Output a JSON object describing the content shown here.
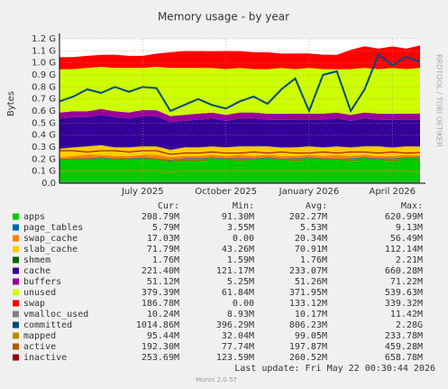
{
  "chart_data": {
    "type": "area",
    "title": "Memory usage - by year",
    "y_label": "Bytes",
    "side_text": "RRDTOOL / TOBI OETIKER",
    "categories": [
      null,
      null,
      null,
      null,
      null,
      null,
      "July 2025",
      null,
      null,
      null,
      null,
      null,
      "October 2025",
      null,
      null,
      null,
      null,
      null,
      "January 2026",
      null,
      null,
      null,
      null,
      null,
      "April 2026",
      null,
      null
    ],
    "ylim": [
      0,
      1.2
    ],
    "yticks": [
      {
        "value": 0,
        "label": "0.0"
      },
      {
        "value": 0.1,
        "label": "0.1 G"
      },
      {
        "value": 0.2,
        "label": "0.2 G"
      },
      {
        "value": 0.3,
        "label": "0.3 G"
      },
      {
        "value": 0.4,
        "label": "0.4 G"
      },
      {
        "value": 0.5,
        "label": "0.5 G"
      },
      {
        "value": 0.6,
        "label": "0.6 G"
      },
      {
        "value": 0.7,
        "label": "0.7 G"
      },
      {
        "value": 0.8,
        "label": "0.8 G"
      },
      {
        "value": 0.9,
        "label": "0.9 G"
      },
      {
        "value": 1.0,
        "label": "1.0 G"
      },
      {
        "value": 1.1,
        "label": "1.1 G"
      },
      {
        "value": 1.2,
        "label": "1.2 G"
      }
    ],
    "grid": true,
    "stat_headers": [
      "Cur:",
      "Min:",
      "Avg:",
      "Max:"
    ],
    "series": [
      {
        "name": "apps",
        "color": "#00cc00",
        "stacked": true,
        "stats": [
          "208.79M",
          "91.30M",
          "202.27M",
          "620.99M"
        ],
        "values": [
          0.19,
          0.2,
          0.2,
          0.21,
          0.2,
          0.2,
          0.21,
          0.2,
          0.19,
          0.2,
          0.2,
          0.21,
          0.2,
          0.2,
          0.2,
          0.21,
          0.2,
          0.2,
          0.21,
          0.2,
          0.2,
          0.2,
          0.21,
          0.2,
          0.2,
          0.21,
          0.21
        ]
      },
      {
        "name": "page_tables",
        "color": "#0066b3",
        "stacked": true,
        "stats": [
          "5.79M",
          "3.55M",
          "5.53M",
          "9.13M"
        ],
        "values": [
          0.005,
          0.006,
          0.006,
          0.005,
          0.006,
          0.006,
          0.006,
          0.005,
          0.006,
          0.006,
          0.006,
          0.005,
          0.006,
          0.006,
          0.006,
          0.006,
          0.005,
          0.006,
          0.006,
          0.006,
          0.005,
          0.006,
          0.006,
          0.006,
          0.005,
          0.006,
          0.006
        ]
      },
      {
        "name": "swap_cache",
        "color": "#ff8000",
        "stacked": true,
        "stats": [
          "17.03M",
          "0.00",
          "20.34M",
          "56.49M"
        ],
        "values": [
          0.02,
          0.02,
          0.03,
          0.02,
          0.02,
          0.02,
          0.02,
          0.03,
          0.02,
          0.02,
          0.02,
          0.02,
          0.02,
          0.03,
          0.02,
          0.02,
          0.02,
          0.02,
          0.02,
          0.02,
          0.03,
          0.02,
          0.02,
          0.02,
          0.02,
          0.02,
          0.017
        ]
      },
      {
        "name": "slab_cache",
        "color": "#ffcc00",
        "stacked": true,
        "stats": [
          "71.79M",
          "43.26M",
          "70.91M",
          "112.14M"
        ],
        "values": [
          0.07,
          0.07,
          0.07,
          0.08,
          0.07,
          0.07,
          0.07,
          0.07,
          0.06,
          0.07,
          0.07,
          0.07,
          0.07,
          0.07,
          0.08,
          0.07,
          0.07,
          0.07,
          0.07,
          0.07,
          0.07,
          0.07,
          0.07,
          0.08,
          0.07,
          0.07,
          0.072
        ]
      },
      {
        "name": "shmem",
        "color": "#006600",
        "stacked": true,
        "stats": [
          "1.76M",
          "1.59M",
          "1.76M",
          "2.21M"
        ],
        "values": [
          0.002,
          0.002,
          0.002,
          0.002,
          0.002,
          0.002,
          0.002,
          0.002,
          0.002,
          0.002,
          0.002,
          0.002,
          0.002,
          0.002,
          0.002,
          0.002,
          0.002,
          0.002,
          0.002,
          0.002,
          0.002,
          0.002,
          0.002,
          0.002,
          0.002,
          0.002,
          0.002
        ]
      },
      {
        "name": "cache",
        "color": "#330099",
        "stacked": true,
        "stats": [
          "221.40M",
          "121.17M",
          "233.07M",
          "660.28M"
        ],
        "values": [
          0.25,
          0.25,
          0.24,
          0.25,
          0.25,
          0.24,
          0.25,
          0.25,
          0.23,
          0.22,
          0.23,
          0.23,
          0.22,
          0.23,
          0.23,
          0.22,
          0.23,
          0.23,
          0.22,
          0.23,
          0.23,
          0.22,
          0.23,
          0.22,
          0.23,
          0.22,
          0.221
        ]
      },
      {
        "name": "buffers",
        "color": "#990099",
        "stacked": true,
        "stats": [
          "51.12M",
          "5.25M",
          "51.26M",
          "71.22M"
        ],
        "values": [
          0.05,
          0.05,
          0.05,
          0.05,
          0.05,
          0.05,
          0.05,
          0.05,
          0.05,
          0.05,
          0.05,
          0.05,
          0.05,
          0.05,
          0.05,
          0.05,
          0.05,
          0.05,
          0.05,
          0.05,
          0.05,
          0.05,
          0.05,
          0.05,
          0.05,
          0.05,
          0.051
        ]
      },
      {
        "name": "unused",
        "color": "#ccff00",
        "stacked": true,
        "stats": [
          "379.39M",
          "61.84M",
          "371.95M",
          "539.63M"
        ],
        "values": [
          0.36,
          0.35,
          0.36,
          0.35,
          0.36,
          0.37,
          0.35,
          0.36,
          0.4,
          0.39,
          0.38,
          0.37,
          0.38,
          0.37,
          0.36,
          0.37,
          0.38,
          0.37,
          0.38,
          0.37,
          0.36,
          0.38,
          0.37,
          0.37,
          0.38,
          0.37,
          0.379
        ]
      },
      {
        "name": "swap",
        "color": "#ff0000",
        "stacked": true,
        "stats": [
          "186.78M",
          "0.00",
          "133.12M",
          "339.32M"
        ],
        "values": [
          0.1,
          0.1,
          0.1,
          0.1,
          0.11,
          0.1,
          0.1,
          0.11,
          0.13,
          0.14,
          0.14,
          0.14,
          0.15,
          0.14,
          0.14,
          0.14,
          0.12,
          0.13,
          0.12,
          0.12,
          0.12,
          0.16,
          0.18,
          0.17,
          0.18,
          0.17,
          0.187
        ]
      },
      {
        "name": "vmalloc_used",
        "color": "#808080",
        "stacked": false,
        "stats": [
          "10.24M",
          "8.93M",
          "10.17M",
          "11.42M"
        ],
        "values": [
          0.01,
          0.01,
          0.01,
          0.01,
          0.01,
          0.01,
          0.01,
          0.01,
          0.01,
          0.01,
          0.01,
          0.01,
          0.01,
          0.01,
          0.01,
          0.01,
          0.01,
          0.01,
          0.01,
          0.01,
          0.01,
          0.01,
          0.01,
          0.01,
          0.01,
          0.01,
          0.01
        ]
      },
      {
        "name": "committed",
        "color": "#00487d",
        "stacked": false,
        "stats": [
          "1014.86M",
          "396.29M",
          "806.23M",
          "2.28G"
        ],
        "values": [
          0.68,
          0.72,
          0.78,
          0.75,
          0.8,
          0.76,
          0.8,
          0.79,
          0.6,
          0.65,
          0.7,
          0.65,
          0.62,
          0.68,
          0.72,
          0.66,
          0.78,
          0.87,
          0.6,
          0.9,
          0.93,
          0.6,
          0.78,
          1.07,
          0.98,
          1.05,
          1.01
        ]
      },
      {
        "name": "mapped",
        "color": "#b38f00",
        "stacked": false,
        "stats": [
          "95.44M",
          "32.04M",
          "99.05M",
          "233.78M"
        ],
        "values": [
          0.1,
          0.1,
          0.1,
          0.1,
          0.1,
          0.1,
          0.1,
          0.1,
          0.09,
          0.1,
          0.1,
          0.1,
          0.1,
          0.1,
          0.1,
          0.1,
          0.1,
          0.1,
          0.1,
          0.1,
          0.1,
          0.1,
          0.1,
          0.1,
          0.1,
          0.1,
          0.095
        ]
      },
      {
        "name": "active",
        "color": "#b35a00",
        "stacked": false,
        "stats": [
          "192.30M",
          "77.74M",
          "197.87M",
          "459.28M"
        ],
        "values": [
          0.2,
          0.2,
          0.2,
          0.2,
          0.2,
          0.2,
          0.2,
          0.2,
          0.18,
          0.19,
          0.19,
          0.2,
          0.2,
          0.19,
          0.2,
          0.2,
          0.2,
          0.19,
          0.2,
          0.2,
          0.2,
          0.19,
          0.2,
          0.2,
          0.19,
          0.2,
          0.192
        ]
      },
      {
        "name": "inactive",
        "color": "#a00000",
        "stacked": false,
        "stats": [
          "253.69M",
          "123.59M",
          "260.52M",
          "658.78M"
        ],
        "values": [
          0.27,
          0.27,
          0.26,
          0.27,
          0.27,
          0.26,
          0.27,
          0.27,
          0.24,
          0.25,
          0.25,
          0.26,
          0.25,
          0.25,
          0.26,
          0.25,
          0.26,
          0.25,
          0.25,
          0.26,
          0.25,
          0.26,
          0.26,
          0.25,
          0.26,
          0.25,
          0.254
        ]
      }
    ],
    "last_update": "Last update: Fri May 22 00:30:44 2026",
    "footer": "Munin 2.0.57"
  }
}
